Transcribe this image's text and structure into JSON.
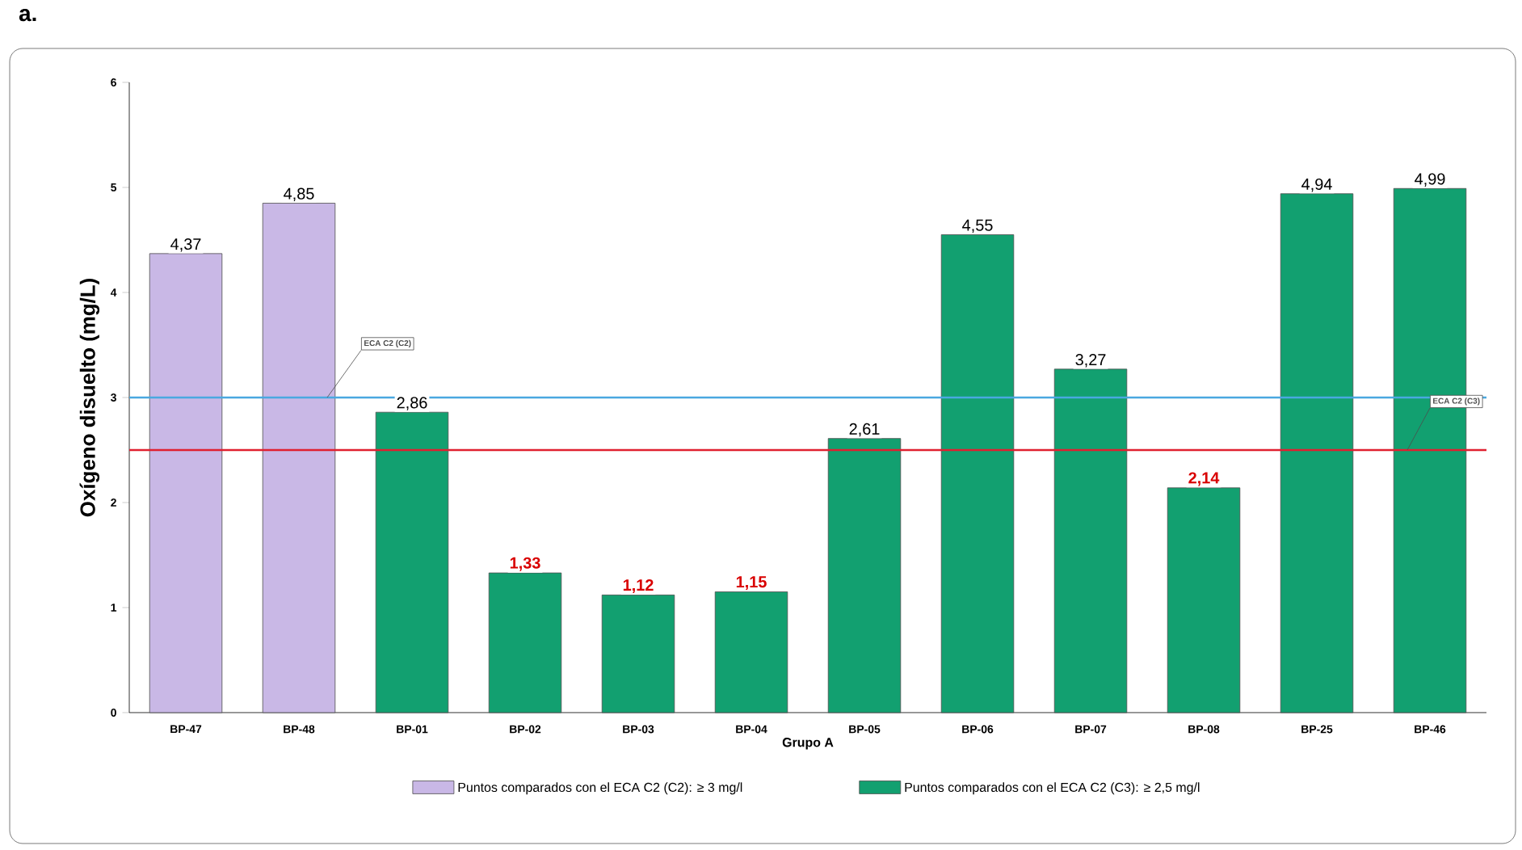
{
  "chart_data": {
    "type": "bar",
    "title": "a.",
    "xlabel": "Grupo A",
    "ylabel": "Oxígeno disuelto (mg/L)",
    "categories": [
      "BP-47",
      "BP-48",
      "BP-01",
      "BP-02",
      "BP-03",
      "BP-04",
      "BP-05",
      "BP-06",
      "BP-07",
      "BP-08",
      "BP-25",
      "BP-46"
    ],
    "series": [
      {
        "name": "Puntos comparados con el ECA C2 (C2): ≥ 3 mg/l",
        "color": "#c9b8e6",
        "values": [
          4.37,
          4.85,
          null,
          null,
          null,
          null,
          null,
          null,
          null,
          null,
          null,
          null
        ],
        "value_labels": [
          "4,37",
          "4,85",
          null,
          null,
          null,
          null,
          null,
          null,
          null,
          null,
          null,
          null
        ]
      },
      {
        "name": "Puntos comparados con el ECA C2 (C3): ≥ 2,5 mg/l",
        "color": "#12a070",
        "values": [
          null,
          null,
          2.86,
          1.33,
          1.12,
          1.15,
          2.61,
          4.55,
          3.27,
          2.14,
          4.94,
          4.99
        ],
        "value_labels": [
          null,
          null,
          "2,86",
          "1,33",
          "1,12",
          "1,15",
          "2,61",
          "4,55",
          "3,27",
          "2,14",
          "4,94",
          "4,99"
        ]
      }
    ],
    "ylim": [
      0,
      6
    ],
    "yticks": [
      0,
      1,
      2,
      3,
      4,
      5,
      6
    ],
    "ref_lines": [
      {
        "axis": "y",
        "value": 3,
        "label": "ECA C2 (C2)",
        "color": "#4aa8e0"
      },
      {
        "axis": "y",
        "value": 2.5,
        "label": "ECA C2 (C3)",
        "color": "#e02030"
      }
    ],
    "legend": "bottom",
    "grid": false
  }
}
